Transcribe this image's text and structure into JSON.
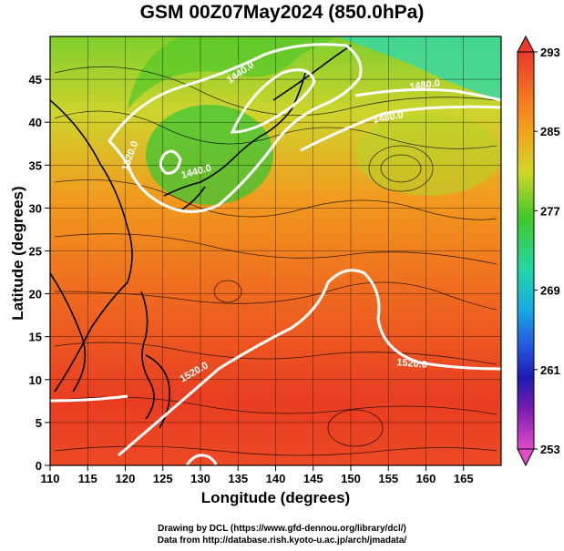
{
  "title": "GSM 00Z07May2024 (850.0hPa)",
  "map": {
    "x_axis": {
      "label": "Longitude (degrees)",
      "range": [
        110,
        170
      ],
      "ticks": [
        "110",
        "115",
        "120",
        "125",
        "130",
        "135",
        "140",
        "145",
        "150",
        "155",
        "160",
        "165"
      ]
    },
    "y_axis": {
      "label": "Latitude  (degrees)",
      "range": [
        0,
        50
      ],
      "ticks": [
        "0",
        "5",
        "10",
        "15",
        "20",
        "25",
        "30",
        "35",
        "40",
        "45"
      ]
    },
    "colorbar": {
      "ticks": [
        "293",
        "285",
        "277",
        "269",
        "261",
        "253"
      ]
    },
    "contour_labels": [
      "1440.0",
      "1440.0",
      "1480.0",
      "1480.0",
      "1520.0",
      "1520.0",
      "1520.0"
    ]
  },
  "credits": {
    "line1": "Drawing by DCL (https://www.gfd-dennou.org/library/dcl/)",
    "line2": "Data from http://database.rish.kyoto-u.ac.jp/arch/jmadata/"
  }
}
